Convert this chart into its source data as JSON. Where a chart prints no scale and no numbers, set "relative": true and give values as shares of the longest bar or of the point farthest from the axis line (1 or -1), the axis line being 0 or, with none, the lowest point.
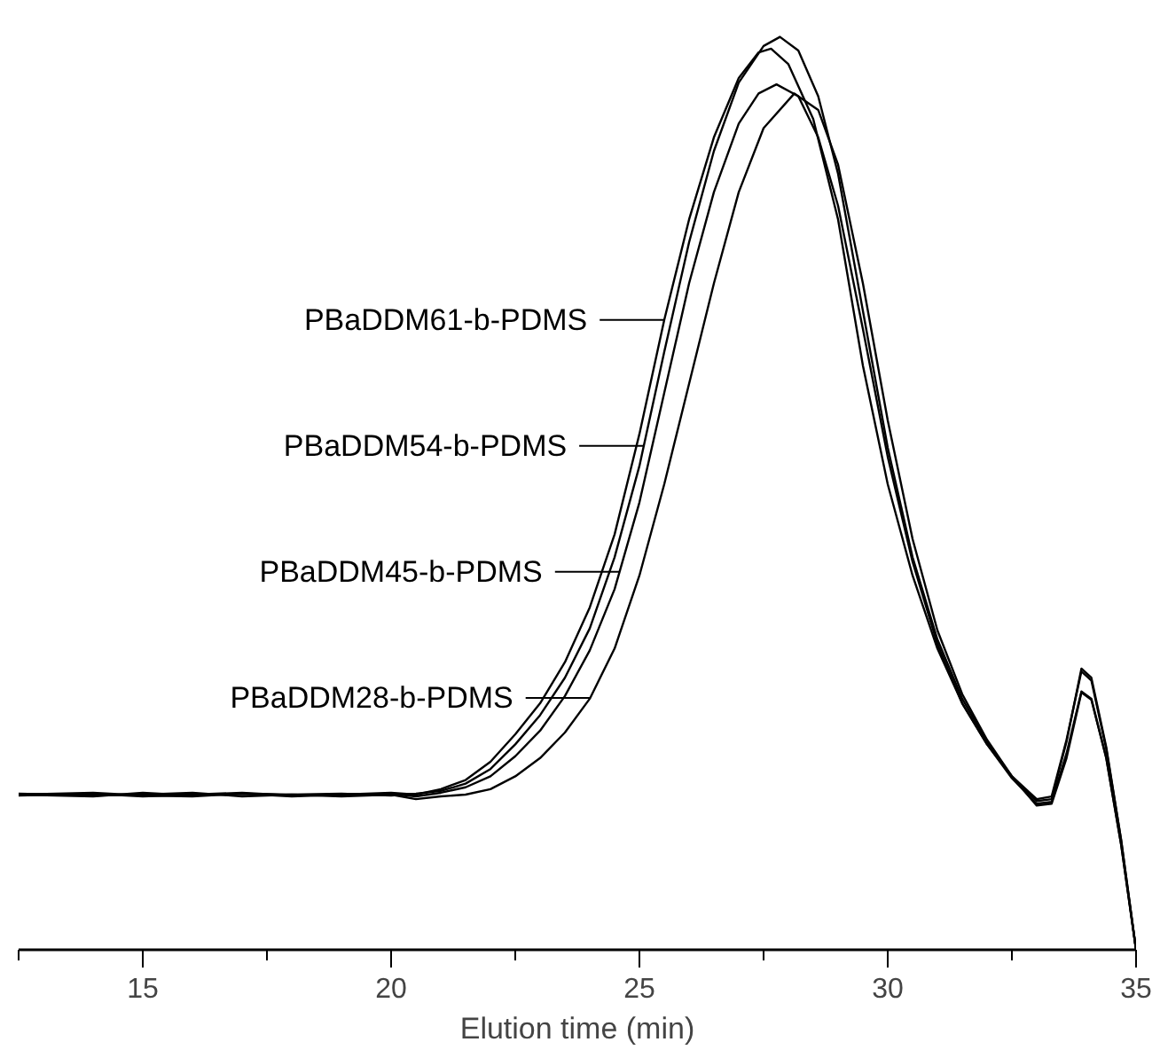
{
  "chart_data": {
    "type": "line",
    "xlabel": "Elution time (min)",
    "relative": true,
    "legend": "left",
    "grid": false,
    "tick_labels": "x",
    "line_style": "solid",
    "xlim": [
      12.5,
      35
    ],
    "xticks": [
      {
        "value": 12.5,
        "label": null
      },
      15,
      {
        "value": 17.5,
        "label": null
      },
      20,
      {
        "value": 22.5,
        "label": null
      },
      25,
      {
        "value": 27.5,
        "label": null
      },
      30,
      {
        "value": 32.5,
        "label": null
      },
      35
    ],
    "series": [
      {
        "name": "PBaDDM61-b-PDMS",
        "color": "#000000",
        "x": [
          12.5,
          14,
          15,
          16,
          17,
          18,
          19,
          20,
          20.5,
          21,
          21.5,
          22,
          22.5,
          23,
          23.5,
          24,
          24.5,
          25,
          25.5,
          26,
          26.5,
          27,
          27.4,
          27.65,
          28,
          28.5,
          29,
          29.5,
          30,
          30.5,
          31,
          31.5,
          32,
          32.5,
          33,
          33.3,
          33.6,
          33.9,
          34.1,
          34.4,
          34.7,
          35
        ],
        "values": [
          0.17,
          0.168,
          0.172,
          0.169,
          0.171,
          0.168,
          0.17,
          0.172,
          0.17,
          0.176,
          0.186,
          0.206,
          0.236,
          0.27,
          0.315,
          0.375,
          0.455,
          0.565,
          0.69,
          0.8,
          0.89,
          0.955,
          0.983,
          0.987,
          0.97,
          0.91,
          0.8,
          0.64,
          0.51,
          0.41,
          0.33,
          0.27,
          0.225,
          0.19,
          0.165,
          0.168,
          0.23,
          0.305,
          0.295,
          0.22,
          0.12,
          0.0
        ]
      },
      {
        "name": "PBaDDM54-b-PDMS",
        "color": "#000000",
        "x": [
          12.5,
          14,
          15,
          16,
          17,
          18,
          19,
          20,
          20.5,
          21,
          21.5,
          22,
          22.5,
          23,
          23.5,
          24,
          24.5,
          25,
          25.5,
          26,
          26.5,
          27,
          27.5,
          27.83,
          28.2,
          28.6,
          29,
          29.5,
          30,
          30.5,
          31,
          31.5,
          32,
          32.5,
          33,
          33.3,
          33.6,
          33.9,
          34.1,
          34.4,
          34.7,
          35
        ],
        "values": [
          0.171,
          0.169,
          0.17,
          0.172,
          0.168,
          0.17,
          0.171,
          0.169,
          0.171,
          0.174,
          0.182,
          0.198,
          0.225,
          0.257,
          0.298,
          0.352,
          0.43,
          0.53,
          0.655,
          0.775,
          0.875,
          0.95,
          0.99,
          1.0,
          0.985,
          0.935,
          0.85,
          0.7,
          0.55,
          0.43,
          0.34,
          0.275,
          0.228,
          0.19,
          0.163,
          0.165,
          0.228,
          0.308,
          0.298,
          0.222,
          0.12,
          0.0
        ]
      },
      {
        "name": "PBaDDM45-b-PDMS",
        "color": "#000000",
        "x": [
          12.5,
          14,
          15,
          16,
          17,
          18,
          19,
          20,
          20.5,
          21,
          21.5,
          22,
          22.5,
          23,
          23.5,
          24,
          24.5,
          25,
          25.5,
          26,
          26.5,
          27,
          27.4,
          27.76,
          28.2,
          28.6,
          29,
          29.5,
          30,
          30.5,
          31,
          31.5,
          32,
          32.5,
          33,
          33.3,
          33.6,
          33.9,
          34.1,
          34.4,
          34.7,
          35
        ],
        "values": [
          0.169,
          0.171,
          0.168,
          0.17,
          0.172,
          0.169,
          0.17,
          0.171,
          0.168,
          0.172,
          0.178,
          0.19,
          0.212,
          0.24,
          0.278,
          0.328,
          0.395,
          0.49,
          0.61,
          0.73,
          0.83,
          0.905,
          0.938,
          0.948,
          0.935,
          0.89,
          0.815,
          0.68,
          0.54,
          0.425,
          0.335,
          0.27,
          0.225,
          0.188,
          0.16,
          0.162,
          0.215,
          0.283,
          0.275,
          0.21,
          0.115,
          0.0
        ]
      },
      {
        "name": "PBaDDM28-b-PDMS",
        "color": "#000000",
        "x": [
          12.5,
          14,
          15,
          16,
          17,
          18,
          19,
          20,
          20.5,
          21,
          21.5,
          22,
          22.5,
          23,
          23.5,
          24,
          24.5,
          25,
          25.5,
          26,
          26.5,
          27,
          27.5,
          28.12,
          28.6,
          29,
          29.5,
          30,
          30.5,
          31,
          31.5,
          32,
          32.5,
          33,
          33.3,
          33.6,
          33.9,
          34.1,
          34.4,
          34.7,
          35
        ],
        "values": [
          0.17,
          0.172,
          0.169,
          0.168,
          0.171,
          0.17,
          0.168,
          0.17,
          0.165,
          0.168,
          0.17,
          0.176,
          0.19,
          0.21,
          0.238,
          0.275,
          0.33,
          0.41,
          0.51,
          0.62,
          0.73,
          0.83,
          0.9,
          0.938,
          0.92,
          0.86,
          0.73,
          0.58,
          0.45,
          0.35,
          0.28,
          0.23,
          0.19,
          0.158,
          0.16,
          0.21,
          0.282,
          0.274,
          0.21,
          0.115,
          0.0
        ]
      }
    ]
  }
}
